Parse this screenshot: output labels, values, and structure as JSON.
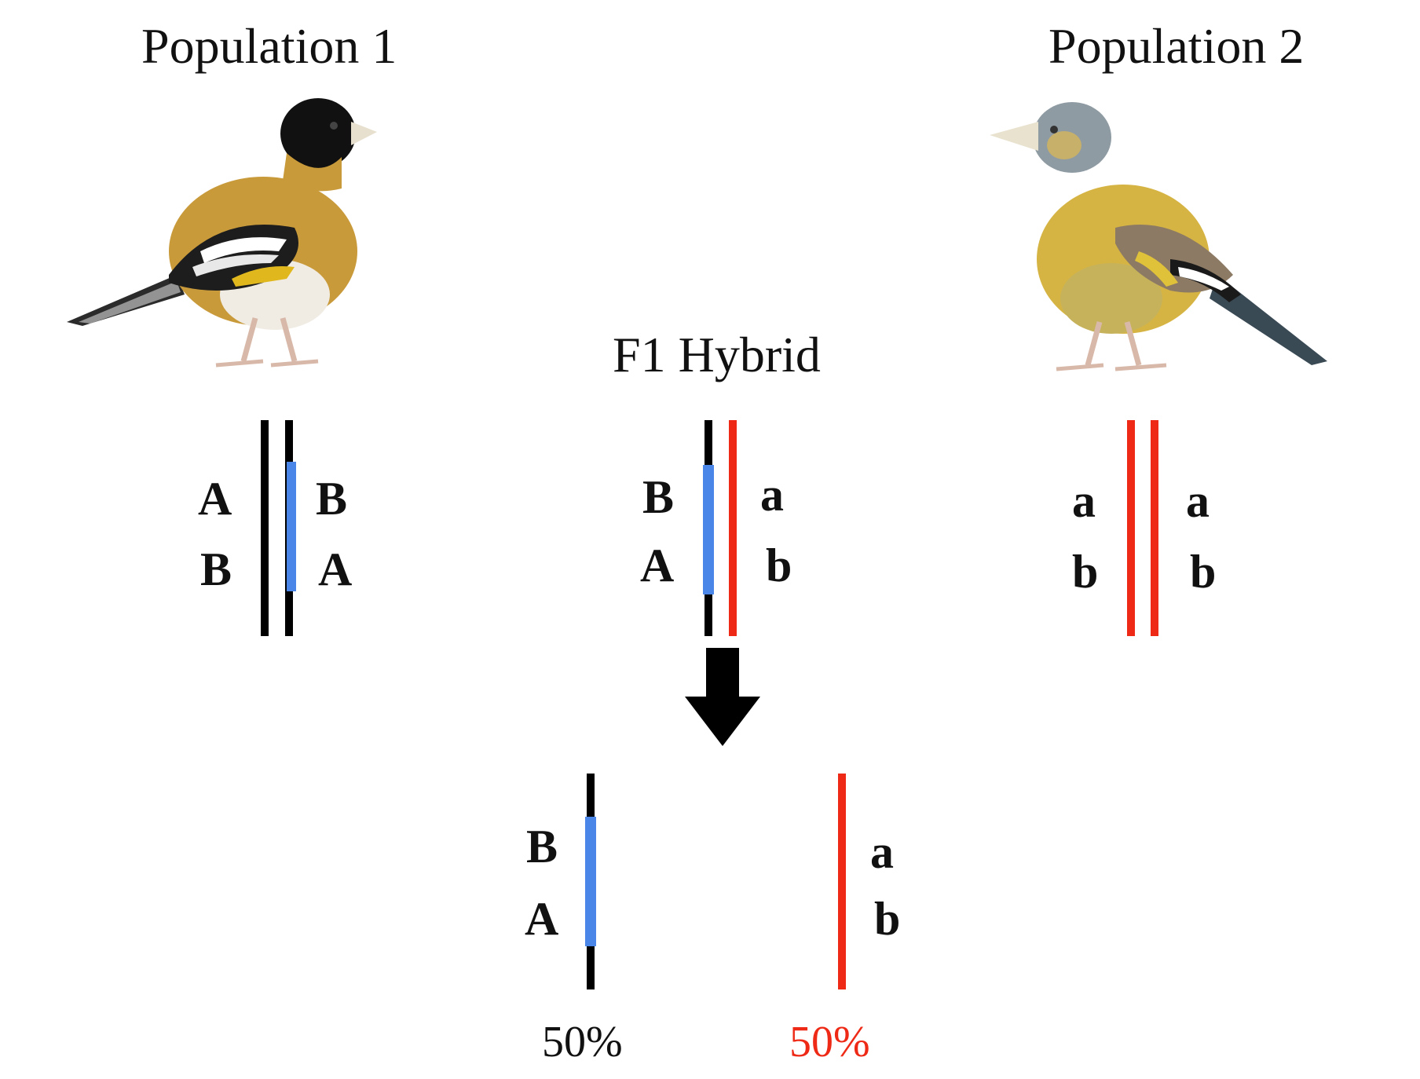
{
  "population1": {
    "title": "Population 1",
    "chromosome_left": {
      "color": "#000000",
      "alleles": [
        "A",
        "B"
      ]
    },
    "chromosome_right": {
      "color": "#000000",
      "inversion_color": "#4a86e8",
      "alleles": [
        "B",
        "A"
      ]
    }
  },
  "population2": {
    "title": "Population 2",
    "chromosome_left": {
      "color": "#ee2a16",
      "alleles": [
        "a",
        "b"
      ]
    },
    "chromosome_right": {
      "color": "#ee2a16",
      "alleles": [
        "a",
        "b"
      ]
    }
  },
  "f1_hybrid": {
    "title": "F1 Hybrid",
    "chromosome_left": {
      "color": "#000000",
      "inversion_color": "#4a86e8",
      "alleles": [
        "B",
        "A"
      ]
    },
    "chromosome_right": {
      "color": "#ee2a16",
      "alleles": [
        "a",
        "b"
      ]
    }
  },
  "gametes": {
    "left": {
      "color": "#000000",
      "inversion_color": "#4a86e8",
      "alleles": [
        "B",
        "A"
      ],
      "percent": "50%",
      "percent_color": "#111111"
    },
    "right": {
      "color": "#ee2a16",
      "alleles": [
        "a",
        "b"
      ],
      "percent": "50%",
      "percent_color": "#ee2a16"
    }
  },
  "arrow": {
    "icon": "down-arrow-icon",
    "color": "#000000"
  }
}
